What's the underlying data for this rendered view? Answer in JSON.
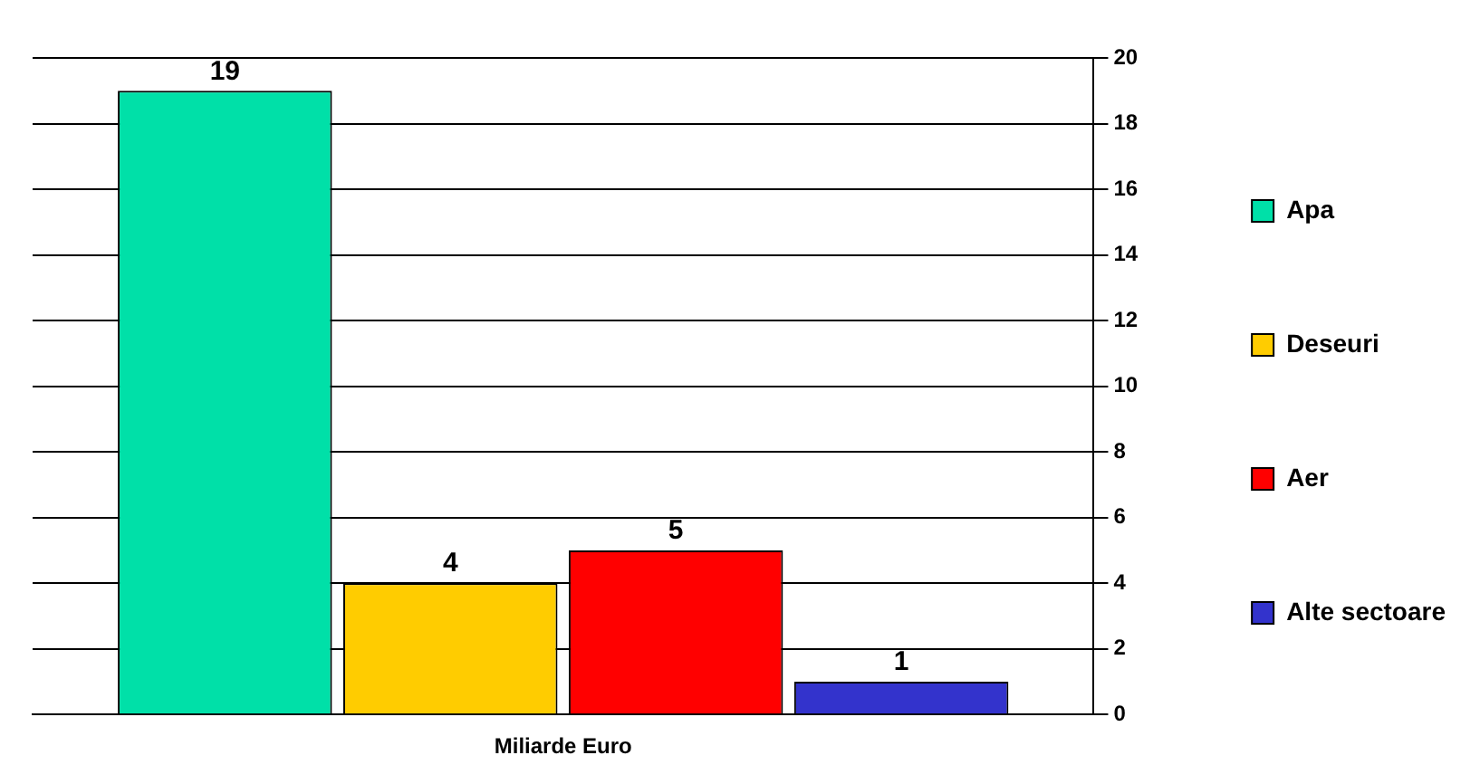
{
  "chart_data": {
    "type": "bar",
    "categories": [
      "Miliarde Euro"
    ],
    "series": [
      {
        "name": "Apa",
        "color": "#00e0a8",
        "values": [
          19
        ]
      },
      {
        "name": "Deseuri",
        "color": "#ffcc00",
        "values": [
          4
        ]
      },
      {
        "name": "Aer",
        "color": "#ff0000",
        "values": [
          5
        ]
      },
      {
        "name": "Alte sectoare",
        "color": "#3333cc",
        "values": [
          1
        ]
      }
    ],
    "ylim": [
      0,
      20
    ],
    "yticks": [
      0,
      2,
      4,
      6,
      8,
      10,
      12,
      14,
      16,
      18,
      20
    ],
    "grid": "y",
    "legend": "right",
    "data_labels": true
  }
}
